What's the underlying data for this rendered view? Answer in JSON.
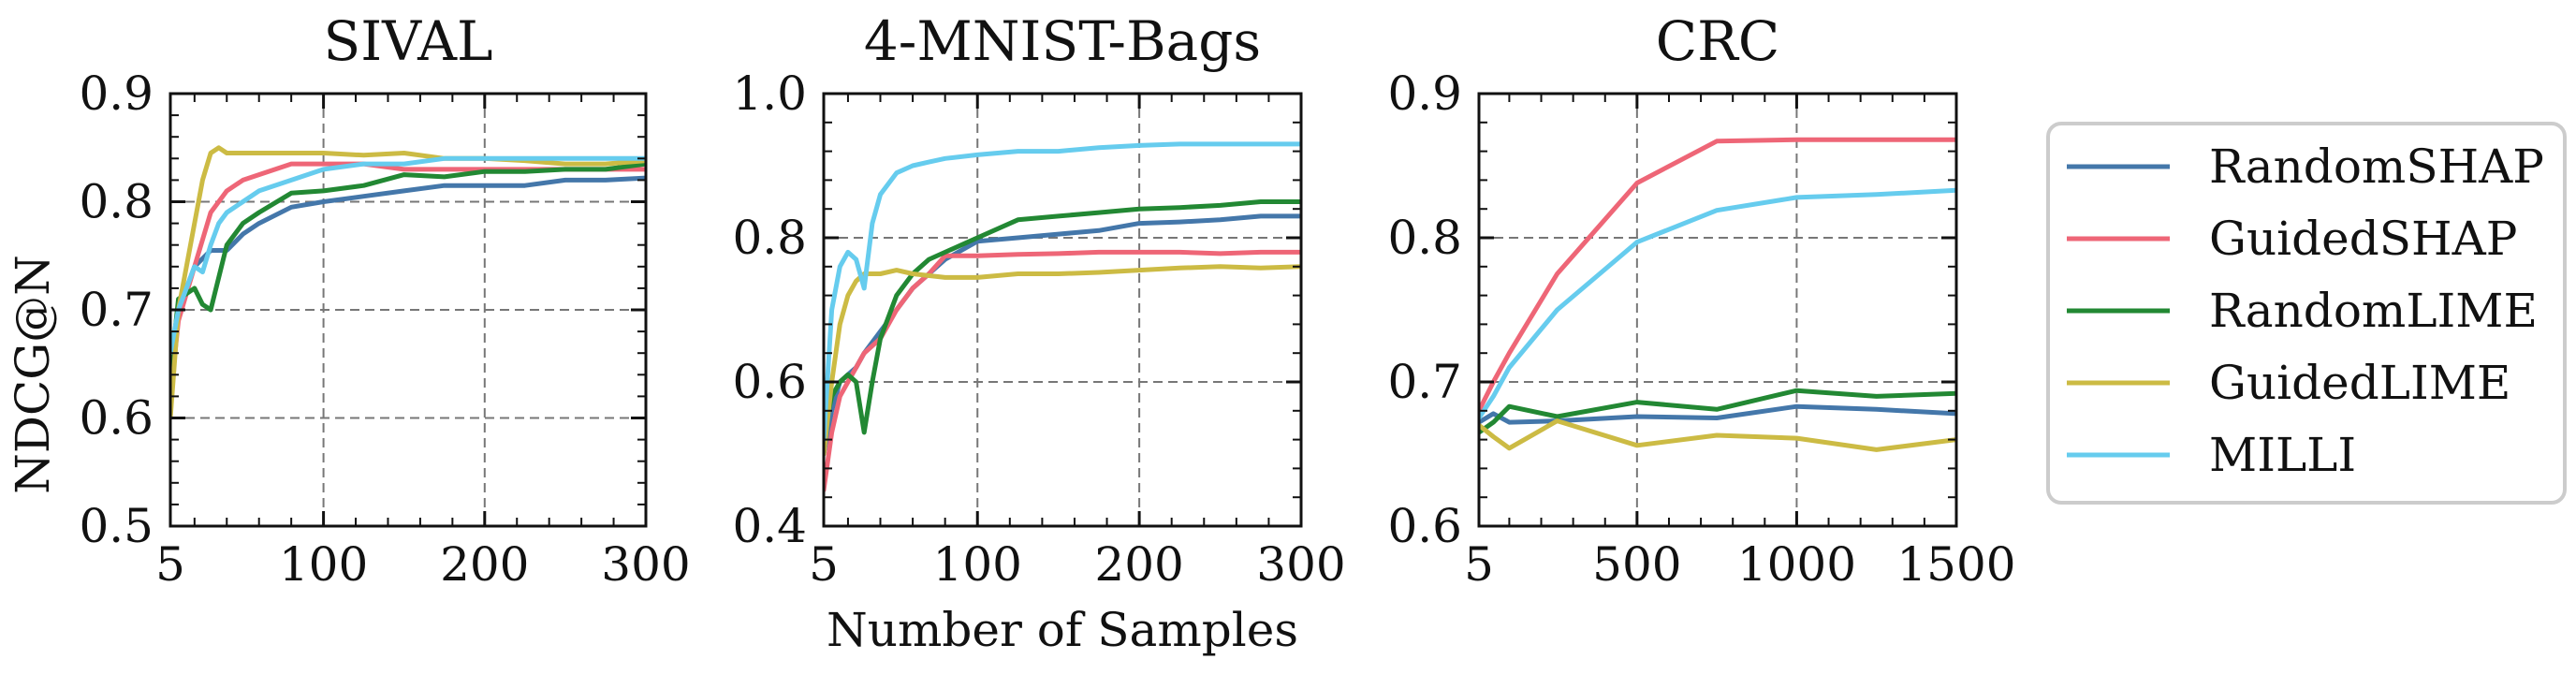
{
  "xlabel": "Number of Samples",
  "ylabel": "NDCG@N",
  "legend": [
    {
      "label": "RandomSHAP",
      "color": "#4477AA"
    },
    {
      "label": "GuidedSHAP",
      "color": "#EE6677"
    },
    {
      "label": "RandomLIME",
      "color": "#228833"
    },
    {
      "label": "GuidedLIME",
      "color": "#CCBB44"
    },
    {
      "label": "MILLI",
      "color": "#66CCEE"
    }
  ],
  "chart_data": [
    {
      "type": "line",
      "title": "SIVAL",
      "xlim": [
        5,
        300
      ],
      "ylim": [
        0.5,
        0.9
      ],
      "xticks": [
        5,
        100,
        200,
        300
      ],
      "yticks": [
        0.5,
        0.6,
        0.7,
        0.8,
        0.9
      ],
      "xtick_labels": [
        "5",
        "100",
        "200",
        "300"
      ],
      "ytick_labels": [
        "0.5",
        "0.6",
        "0.7",
        "0.8",
        "0.9"
      ],
      "grid": true,
      "series": [
        {
          "name": "RandomSHAP",
          "color": "#4477AA",
          "x": [
            5,
            10,
            20,
            30,
            40,
            50,
            60,
            80,
            100,
            125,
            150,
            175,
            200,
            225,
            250,
            275,
            300
          ],
          "y": [
            0.65,
            0.7,
            0.74,
            0.755,
            0.755,
            0.77,
            0.78,
            0.795,
            0.8,
            0.805,
            0.81,
            0.815,
            0.815,
            0.815,
            0.82,
            0.82,
            0.822
          ]
        },
        {
          "name": "GuidedSHAP",
          "color": "#EE6677",
          "x": [
            5,
            10,
            20,
            30,
            40,
            50,
            60,
            80,
            100,
            125,
            150,
            175,
            200,
            225,
            250,
            275,
            300
          ],
          "y": [
            0.62,
            0.69,
            0.74,
            0.79,
            0.81,
            0.82,
            0.825,
            0.835,
            0.835,
            0.835,
            0.83,
            0.83,
            0.83,
            0.83,
            0.83,
            0.83,
            0.83
          ]
        },
        {
          "name": "RandomLIME",
          "color": "#228833",
          "x": [
            5,
            10,
            20,
            25,
            30,
            35,
            40,
            50,
            60,
            80,
            100,
            125,
            150,
            175,
            200,
            225,
            250,
            275,
            300
          ],
          "y": [
            0.64,
            0.71,
            0.72,
            0.705,
            0.7,
            0.73,
            0.76,
            0.78,
            0.79,
            0.808,
            0.81,
            0.815,
            0.825,
            0.823,
            0.828,
            0.828,
            0.83,
            0.83,
            0.835
          ]
        },
        {
          "name": "GuidedLIME",
          "color": "#CCBB44",
          "x": [
            5,
            10,
            20,
            25,
            30,
            35,
            40,
            50,
            60,
            80,
            100,
            125,
            150,
            175,
            200,
            225,
            250,
            275,
            300
          ],
          "y": [
            0.6,
            0.7,
            0.78,
            0.82,
            0.845,
            0.85,
            0.845,
            0.845,
            0.845,
            0.845,
            0.845,
            0.843,
            0.845,
            0.84,
            0.84,
            0.838,
            0.835,
            0.835,
            0.838
          ]
        },
        {
          "name": "MILLI",
          "color": "#66CCEE",
          "x": [
            5,
            10,
            15,
            20,
            25,
            30,
            35,
            40,
            50,
            60,
            80,
            100,
            125,
            150,
            175,
            200,
            225,
            250,
            275,
            300
          ],
          "y": [
            0.66,
            0.7,
            0.72,
            0.74,
            0.735,
            0.76,
            0.78,
            0.79,
            0.8,
            0.81,
            0.82,
            0.83,
            0.835,
            0.835,
            0.84,
            0.84,
            0.84,
            0.84,
            0.84,
            0.84
          ]
        }
      ]
    },
    {
      "type": "line",
      "title": "4-MNIST-Bags",
      "xlim": [
        5,
        300
      ],
      "ylim": [
        0.4,
        1.0
      ],
      "xticks": [
        5,
        100,
        200,
        300
      ],
      "yticks": [
        0.4,
        0.6,
        0.8,
        1.0
      ],
      "xtick_labels": [
        "5",
        "100",
        "200",
        "300"
      ],
      "ytick_labels": [
        "0.4",
        "0.6",
        "0.8",
        "1.0"
      ],
      "grid": true,
      "series": [
        {
          "name": "RandomSHAP",
          "color": "#4477AA",
          "x": [
            5,
            10,
            15,
            20,
            25,
            30,
            40,
            50,
            60,
            70,
            80,
            100,
            125,
            150,
            175,
            200,
            225,
            250,
            275,
            300
          ],
          "y": [
            0.5,
            0.56,
            0.6,
            0.61,
            0.62,
            0.64,
            0.67,
            0.7,
            0.73,
            0.75,
            0.77,
            0.795,
            0.8,
            0.805,
            0.81,
            0.82,
            0.822,
            0.825,
            0.83,
            0.83
          ]
        },
        {
          "name": "GuidedSHAP",
          "color": "#EE6677",
          "x": [
            5,
            10,
            15,
            20,
            25,
            30,
            40,
            50,
            60,
            70,
            80,
            100,
            125,
            150,
            175,
            200,
            225,
            250,
            275,
            300
          ],
          "y": [
            0.45,
            0.53,
            0.58,
            0.6,
            0.62,
            0.64,
            0.66,
            0.7,
            0.73,
            0.75,
            0.775,
            0.775,
            0.777,
            0.778,
            0.78,
            0.78,
            0.78,
            0.778,
            0.78,
            0.78
          ]
        },
        {
          "name": "RandomLIME",
          "color": "#228833",
          "x": [
            5,
            10,
            15,
            20,
            25,
            30,
            35,
            40,
            50,
            60,
            70,
            80,
            100,
            125,
            150,
            175,
            200,
            225,
            250,
            275,
            300
          ],
          "y": [
            0.53,
            0.58,
            0.6,
            0.61,
            0.6,
            0.53,
            0.6,
            0.66,
            0.72,
            0.75,
            0.77,
            0.78,
            0.8,
            0.825,
            0.83,
            0.835,
            0.84,
            0.842,
            0.845,
            0.85,
            0.85
          ]
        },
        {
          "name": "GuidedLIME",
          "color": "#CCBB44",
          "x": [
            5,
            10,
            15,
            20,
            25,
            30,
            35,
            40,
            50,
            60,
            80,
            100,
            125,
            150,
            175,
            200,
            225,
            250,
            275,
            300
          ],
          "y": [
            0.5,
            0.6,
            0.68,
            0.72,
            0.74,
            0.75,
            0.75,
            0.75,
            0.755,
            0.75,
            0.745,
            0.745,
            0.75,
            0.75,
            0.752,
            0.755,
            0.758,
            0.76,
            0.758,
            0.76
          ]
        },
        {
          "name": "MILLI",
          "color": "#66CCEE",
          "x": [
            5,
            10,
            15,
            20,
            25,
            30,
            35,
            40,
            50,
            60,
            70,
            80,
            100,
            125,
            150,
            175,
            200,
            225,
            250,
            275,
            300
          ],
          "y": [
            0.52,
            0.7,
            0.76,
            0.78,
            0.77,
            0.73,
            0.82,
            0.86,
            0.89,
            0.9,
            0.905,
            0.91,
            0.915,
            0.92,
            0.92,
            0.925,
            0.928,
            0.93,
            0.93,
            0.93,
            0.93
          ]
        }
      ]
    },
    {
      "type": "line",
      "title": "CRC",
      "xlim": [
        5,
        1500
      ],
      "ylim": [
        0.6,
        0.9
      ],
      "xticks": [
        5,
        500,
        1000,
        1500
      ],
      "yticks": [
        0.6,
        0.7,
        0.8,
        0.9
      ],
      "xtick_labels": [
        "5",
        "500",
        "1000",
        "1500"
      ],
      "ytick_labels": [
        "0.6",
        "0.7",
        "0.8",
        "0.9"
      ],
      "grid": true,
      "series": [
        {
          "name": "RandomSHAP",
          "color": "#4477AA",
          "x": [
            5,
            50,
            100,
            250,
            500,
            750,
            1000,
            1250,
            1500
          ],
          "y": [
            0.672,
            0.678,
            0.672,
            0.673,
            0.676,
            0.675,
            0.683,
            0.681,
            0.678
          ]
        },
        {
          "name": "GuidedSHAP",
          "color": "#EE6677",
          "x": [
            5,
            50,
            100,
            250,
            500,
            750,
            1000,
            1250,
            1500
          ],
          "y": [
            0.68,
            0.7,
            0.72,
            0.775,
            0.838,
            0.867,
            0.868,
            0.868,
            0.868
          ]
        },
        {
          "name": "RandomLIME",
          "color": "#228833",
          "x": [
            5,
            50,
            100,
            250,
            500,
            750,
            1000,
            1250,
            1500
          ],
          "y": [
            0.665,
            0.672,
            0.683,
            0.676,
            0.686,
            0.681,
            0.694,
            0.69,
            0.692
          ]
        },
        {
          "name": "GuidedLIME",
          "color": "#CCBB44",
          "x": [
            5,
            50,
            100,
            250,
            500,
            750,
            1000,
            1250,
            1500
          ],
          "y": [
            0.67,
            0.662,
            0.654,
            0.673,
            0.656,
            0.663,
            0.661,
            0.653,
            0.66
          ]
        },
        {
          "name": "MILLI",
          "color": "#66CCEE",
          "x": [
            5,
            50,
            100,
            250,
            500,
            750,
            1000,
            1250,
            1500
          ],
          "y": [
            0.675,
            0.69,
            0.71,
            0.75,
            0.797,
            0.819,
            0.828,
            0.83,
            0.833
          ]
        }
      ]
    }
  ]
}
